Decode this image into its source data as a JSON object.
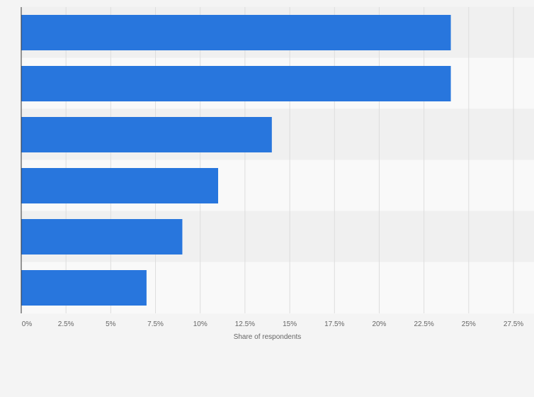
{
  "chart_data": {
    "type": "bar",
    "orientation": "horizontal",
    "categories": [
      "",
      "",
      "",
      "",
      "",
      ""
    ],
    "values": [
      24,
      24,
      14,
      11,
      9,
      7
    ],
    "unit": "%",
    "xlabel": "Share of respondents",
    "ylabel": "",
    "xlim": [
      0,
      27.5
    ],
    "xticks": [
      "0%",
      "2.5%",
      "5%",
      "7.5%",
      "10%",
      "12.5%",
      "15%",
      "17.5%",
      "20%",
      "22.5%",
      "25%",
      "27.5%"
    ],
    "grid": true,
    "legend": "none",
    "colors": {
      "bar": "#2876dd",
      "band_dark": "#f0f0f0",
      "band_light": "#f9f9f9",
      "grid": "#dddddd",
      "axis": "#333333",
      "text": "#666666"
    }
  }
}
